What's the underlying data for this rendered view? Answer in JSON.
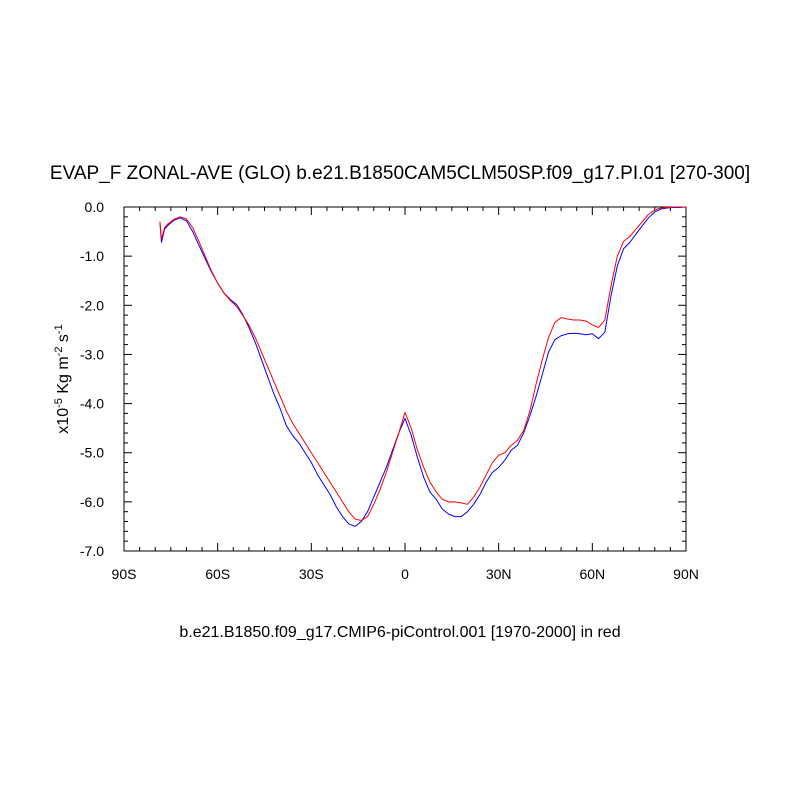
{
  "chart_data": {
    "type": "line",
    "title": "EVAP_F ZONAL-AVE (GLO) b.e21.B1850CAM5CLM50SP.f09_g17.PI.01 [270-300]",
    "subtitle": "b.e21.B1850.f09_g17.CMIP6-piControl.001 [1970-2000] in red",
    "ylabel": {
      "prefix": "x10",
      "exp1": "-5",
      "mid": " Kg m",
      "exp2": "-2",
      "mid2": " s",
      "exp3": "-1"
    },
    "xlim": [
      -90,
      90
    ],
    "ylim": [
      -7,
      0
    ],
    "x_ticks": [
      {
        "v": -90,
        "label": "90S"
      },
      {
        "v": -60,
        "label": "60S"
      },
      {
        "v": -30,
        "label": "30S"
      },
      {
        "v": 0,
        "label": "0"
      },
      {
        "v": 30,
        "label": "30N"
      },
      {
        "v": 60,
        "label": "60N"
      },
      {
        "v": 90,
        "label": "90N"
      }
    ],
    "y_ticks": [
      {
        "v": 0,
        "label": "0.0"
      },
      {
        "v": -1,
        "label": "-1.0"
      },
      {
        "v": -2,
        "label": "-2.0"
      },
      {
        "v": -3,
        "label": "-3.0"
      },
      {
        "v": -4,
        "label": "-4.0"
      },
      {
        "v": -5,
        "label": "-5.0"
      },
      {
        "v": -6,
        "label": "-6.0"
      },
      {
        "v": -7,
        "label": "-7.0"
      }
    ],
    "grid": false,
    "series": [
      {
        "color": "#0000ff",
        "x": [
          -78.5,
          -78,
          -77,
          -76,
          -74,
          -72,
          -70,
          -68,
          -66,
          -64,
          -62,
          -60,
          -58,
          -56,
          -54,
          -52,
          -50,
          -48,
          -46,
          -44,
          -42,
          -40,
          -38,
          -36,
          -34,
          -32,
          -30,
          -28,
          -26,
          -24,
          -22,
          -20,
          -18,
          -16,
          -14,
          -12,
          -10,
          -8,
          -6,
          -4,
          -2,
          0,
          2,
          4,
          6,
          8,
          10,
          12,
          14,
          16,
          18,
          20,
          22,
          24,
          26,
          28,
          30,
          32,
          34,
          36,
          38,
          40,
          42,
          44,
          46,
          48,
          50,
          52,
          54,
          56,
          58,
          60,
          62,
          64,
          66,
          68,
          70,
          72,
          74,
          76,
          78,
          80,
          82,
          84,
          86,
          88,
          90
        ],
        "y": [
          -0.3,
          -0.72,
          -0.45,
          -0.38,
          -0.27,
          -0.22,
          -0.28,
          -0.5,
          -0.78,
          -1.05,
          -1.32,
          -1.55,
          -1.75,
          -1.88,
          -1.98,
          -2.18,
          -2.45,
          -2.75,
          -3.1,
          -3.45,
          -3.8,
          -4.1,
          -4.45,
          -4.65,
          -4.8,
          -5.0,
          -5.2,
          -5.45,
          -5.65,
          -5.85,
          -6.1,
          -6.3,
          -6.45,
          -6.5,
          -6.4,
          -6.2,
          -5.9,
          -5.6,
          -5.3,
          -4.95,
          -4.6,
          -4.3,
          -4.65,
          -5.1,
          -5.5,
          -5.8,
          -5.95,
          -6.15,
          -6.25,
          -6.3,
          -6.3,
          -6.2,
          -6.05,
          -5.85,
          -5.6,
          -5.4,
          -5.3,
          -5.15,
          -4.95,
          -4.85,
          -4.6,
          -4.25,
          -3.85,
          -3.4,
          -2.95,
          -2.7,
          -2.62,
          -2.58,
          -2.57,
          -2.58,
          -2.6,
          -2.58,
          -2.68,
          -2.55,
          -1.8,
          -1.2,
          -0.85,
          -0.72,
          -0.55,
          -0.38,
          -0.22,
          -0.1,
          -0.04,
          -0.02,
          -0.01,
          -0.01,
          0.0
        ]
      },
      {
        "color": "#ff0000",
        "x": [
          -78.5,
          -78,
          -77,
          -76,
          -74,
          -72,
          -70,
          -68,
          -66,
          -64,
          -62,
          -60,
          -58,
          -56,
          -54,
          -52,
          -50,
          -48,
          -46,
          -44,
          -42,
          -40,
          -38,
          -36,
          -34,
          -32,
          -30,
          -28,
          -26,
          -24,
          -22,
          -20,
          -18,
          -16,
          -14,
          -12,
          -10,
          -8,
          -6,
          -4,
          -2,
          0,
          2,
          4,
          6,
          8,
          10,
          12,
          14,
          16,
          18,
          20,
          22,
          24,
          26,
          28,
          30,
          32,
          34,
          36,
          38,
          40,
          42,
          44,
          46,
          48,
          50,
          52,
          54,
          56,
          58,
          60,
          62,
          64,
          66,
          68,
          70,
          72,
          74,
          76,
          78,
          80,
          82,
          84,
          86,
          88,
          90
        ],
        "y": [
          -0.3,
          -0.65,
          -0.42,
          -0.35,
          -0.25,
          -0.2,
          -0.24,
          -0.42,
          -0.7,
          -1.0,
          -1.3,
          -1.55,
          -1.75,
          -1.9,
          -2.02,
          -2.2,
          -2.4,
          -2.65,
          -2.95,
          -3.25,
          -3.55,
          -3.85,
          -4.15,
          -4.4,
          -4.6,
          -4.8,
          -5.0,
          -5.2,
          -5.4,
          -5.6,
          -5.8,
          -6.0,
          -6.2,
          -6.35,
          -6.38,
          -6.3,
          -6.05,
          -5.75,
          -5.4,
          -5.0,
          -4.6,
          -4.18,
          -4.5,
          -4.95,
          -5.3,
          -5.6,
          -5.8,
          -5.95,
          -6.0,
          -6.0,
          -6.02,
          -6.05,
          -5.9,
          -5.7,
          -5.45,
          -5.2,
          -5.05,
          -5.0,
          -4.85,
          -4.75,
          -4.55,
          -4.15,
          -3.6,
          -3.1,
          -2.65,
          -2.35,
          -2.25,
          -2.28,
          -2.3,
          -2.3,
          -2.32,
          -2.4,
          -2.45,
          -2.3,
          -1.6,
          -1.0,
          -0.7,
          -0.6,
          -0.45,
          -0.3,
          -0.15,
          -0.06,
          -0.02,
          -0.01,
          0.0,
          0.0,
          0.0
        ]
      }
    ]
  }
}
